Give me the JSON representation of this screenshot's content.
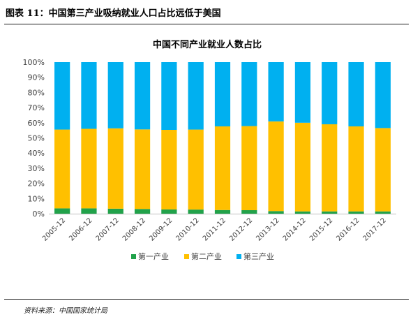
{
  "figure": {
    "caption": "图表 11：中国第三产业吸纳就业人口占比远低于美国",
    "source": "资料来源：中国国家统计局"
  },
  "colors": {
    "primary": "#21a24a",
    "secondary": "#ffc000",
    "tertiary": "#00b0f0"
  },
  "chart_data": {
    "type": "bar",
    "stacked": true,
    "percent": true,
    "title": "中国不同产业就业人数占比",
    "xlabel": "",
    "ylabel": "",
    "ylim": [
      0,
      100
    ],
    "yticks": [
      "0%",
      "10%",
      "20%",
      "30%",
      "40%",
      "50%",
      "60%",
      "70%",
      "80%",
      "90%",
      "100%"
    ],
    "grid": false,
    "legend_position": "bottom",
    "categories": [
      "2005-12",
      "2006-12",
      "2007-12",
      "2008-12",
      "2009-12",
      "2010-12",
      "2011-12",
      "2012-12",
      "2013-12",
      "2014-12",
      "2015-12",
      "2016-12",
      "2017-12"
    ],
    "series": [
      {
        "name": "第一产业",
        "color": "#21a24a",
        "values": [
          3.5,
          3.5,
          3.3,
          3.1,
          2.8,
          2.7,
          2.4,
          2.3,
          1.7,
          1.5,
          1.5,
          1.5,
          1.5
        ]
      },
      {
        "name": "第二产业",
        "color": "#ffc000",
        "values": [
          52.0,
          52.5,
          53.0,
          52.5,
          52.5,
          52.8,
          55.2,
          55.5,
          59.2,
          58.5,
          57.5,
          56.1,
          55.0
        ]
      },
      {
        "name": "第三产业",
        "color": "#00b0f0",
        "values": [
          44.5,
          44.0,
          43.7,
          44.4,
          44.7,
          44.5,
          42.4,
          42.2,
          39.1,
          40.0,
          41.0,
          42.4,
          43.5
        ]
      }
    ]
  }
}
